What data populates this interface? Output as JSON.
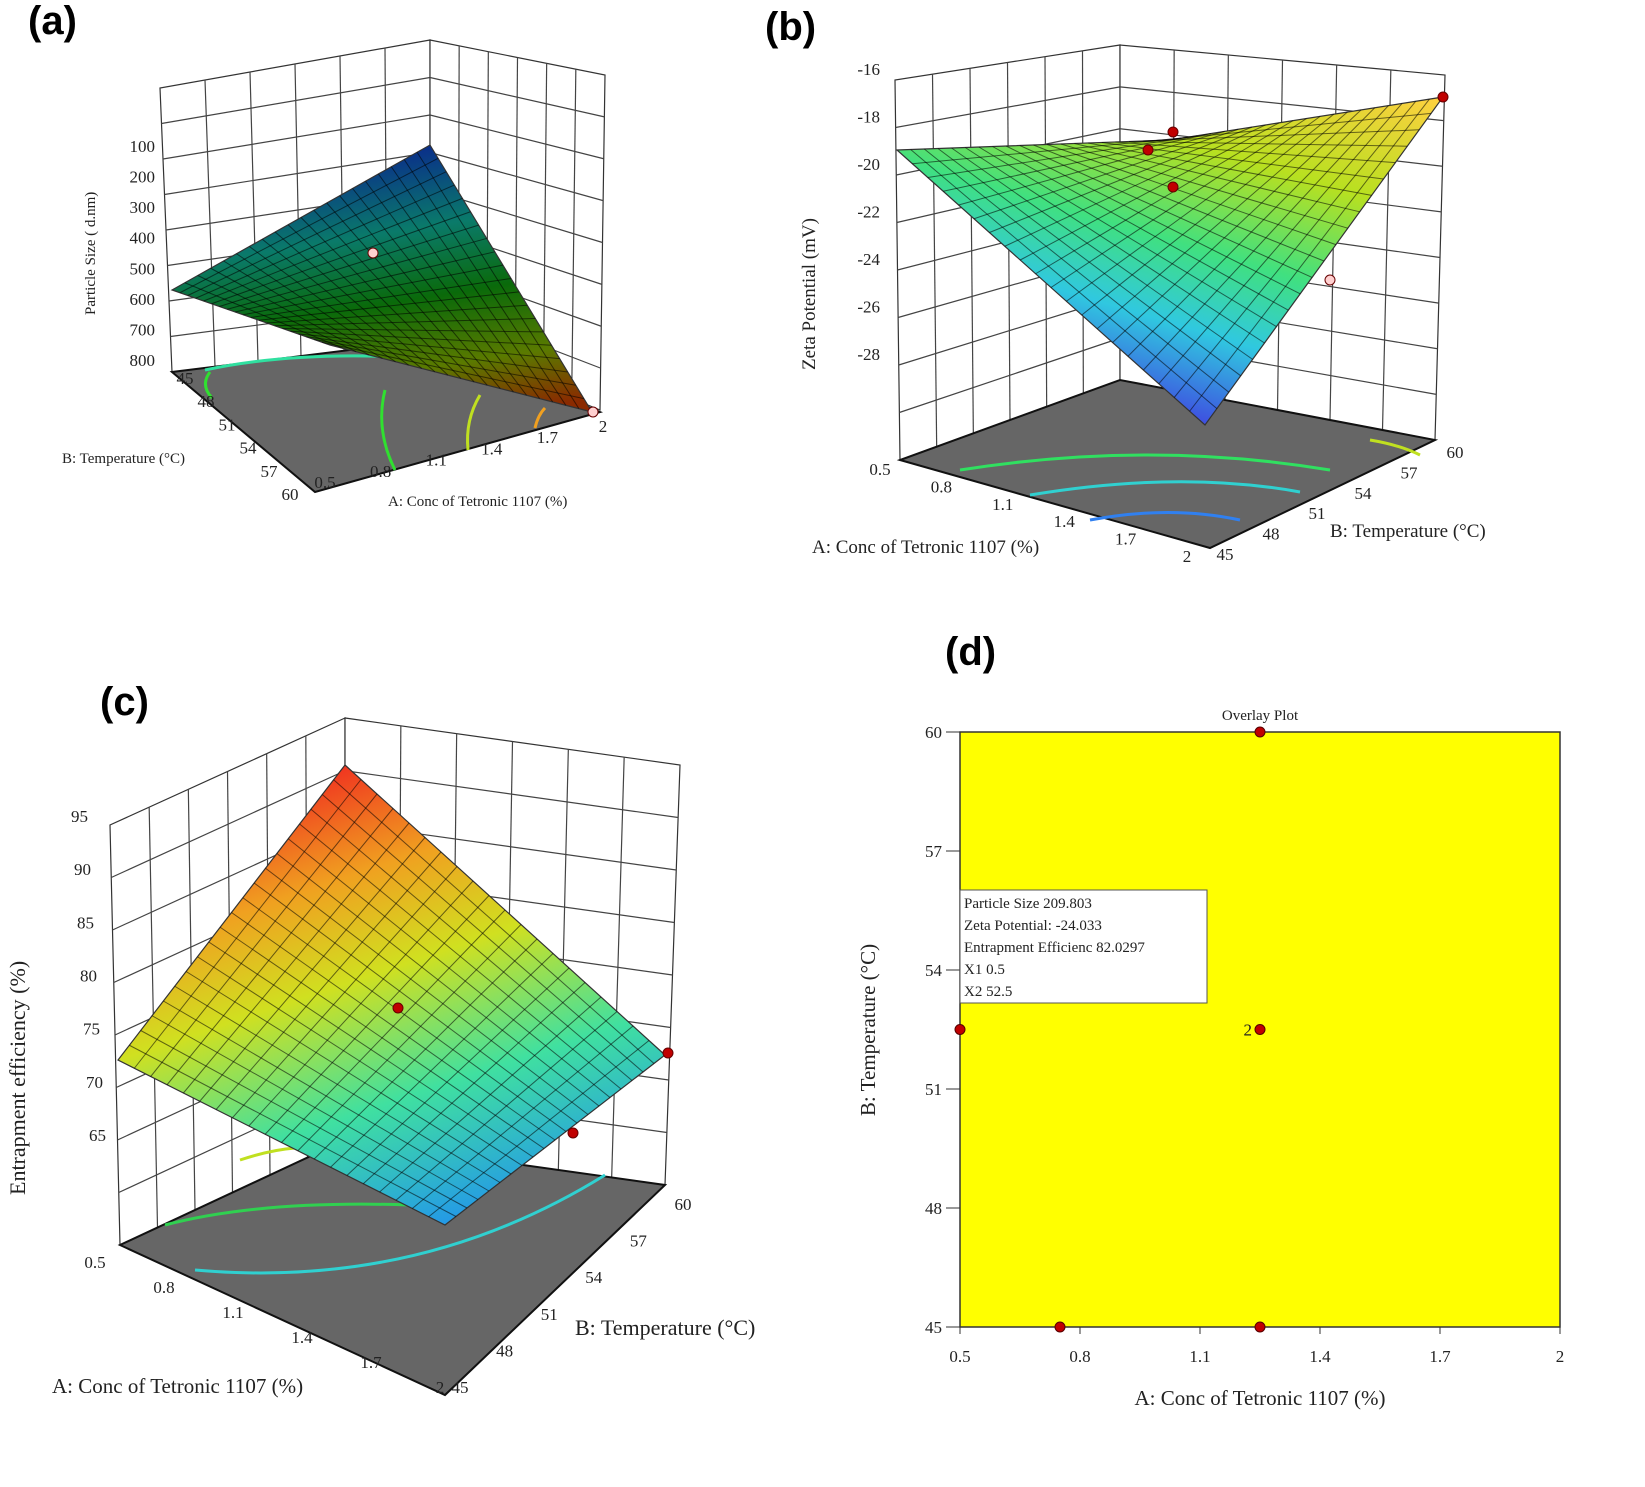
{
  "chart_data": [
    {
      "panel": "(a)",
      "type": "surface3d",
      "zlabel": "Particle Size ( d.nm)",
      "xlabel": "A: Conc of Tetronic 1107 (%)",
      "ylabel": "B: Temperature (°C)",
      "z_ticks": [
        "100",
        "200",
        "300",
        "400",
        "500",
        "600",
        "700",
        "800"
      ],
      "x_ticks": [
        "0.5",
        "0.8",
        "1.1",
        "1.4",
        "1.7",
        "2"
      ],
      "y_ticks": [
        "45",
        "48",
        "51",
        "54",
        "57",
        "60"
      ],
      "colors": [
        "#0a2a8c",
        "#0a7a6a",
        "#0a6a0a",
        "#5a7a00",
        "#8a2a00"
      ]
    },
    {
      "panel": "(b)",
      "type": "surface3d",
      "zlabel": "Zeta Potential (mV)",
      "xlabel": "A: Conc of Tetronic 1107 (%)",
      "ylabel": "B: Temperature (°C)",
      "z_ticks": [
        "-16",
        "-18",
        "-20",
        "-22",
        "-24",
        "-26",
        "-28"
      ],
      "x_ticks": [
        "0.5",
        "0.8",
        "1.1",
        "1.4",
        "1.7",
        "2"
      ],
      "y_ticks": [
        "45",
        "48",
        "51",
        "54",
        "57",
        "60"
      ],
      "colors": [
        "#ffd040",
        "#b8e020",
        "#40e080",
        "#30c8e0",
        "#4040e0"
      ]
    },
    {
      "panel": "(c)",
      "type": "surface3d",
      "zlabel": "Entrapment efficiency (%)",
      "xlabel": "A: Conc of Tetronic 1107 (%)",
      "ylabel": "B: Temperature (°C)",
      "z_ticks": [
        "95",
        "90",
        "85",
        "80",
        "75",
        "70",
        "65"
      ],
      "x_ticks": [
        "0.5",
        "0.8",
        "1.1",
        "1.4",
        "1.7",
        "2"
      ],
      "y_ticks": [
        "45",
        "48",
        "51",
        "54",
        "57",
        "60"
      ],
      "colors": [
        "#f02020",
        "#f0a020",
        "#d0e020",
        "#40e0a0",
        "#2090f0"
      ]
    },
    {
      "panel": "(d)",
      "type": "scatter",
      "title": "Overlay Plot",
      "xlabel": "A: Conc of Tetronic 1107 (%)",
      "ylabel": "B: Temperature (°C)",
      "xlim": [
        0.5,
        2
      ],
      "ylim": [
        45,
        60
      ],
      "x_ticks": [
        "0.5",
        "0.8",
        "1.1",
        "1.4",
        "1.7",
        "2"
      ],
      "y_ticks": [
        "45",
        "48",
        "51",
        "54",
        "57",
        "60"
      ],
      "fill_color": "#ffff00",
      "points": [
        {
          "x": 0.5,
          "y": 52.5,
          "label": ""
        },
        {
          "x": 1.25,
          "y": 52.5,
          "label": "2"
        },
        {
          "x": 1.25,
          "y": 60,
          "label": ""
        },
        {
          "x": 1.25,
          "y": 45,
          "label": ""
        },
        {
          "x": 0.75,
          "y": 45,
          "label": ""
        }
      ],
      "legend": [
        "Particle Size   209.803",
        "Zeta Potential:   -24.033",
        "Entrapment Efficienc   82.0297",
        "X1  0.5",
        "X2  52.5"
      ]
    }
  ]
}
